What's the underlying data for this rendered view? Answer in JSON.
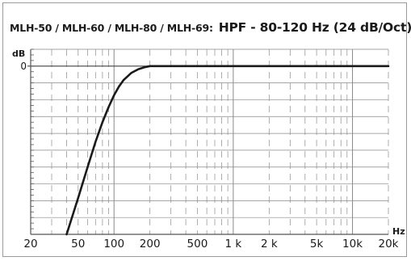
{
  "chart_data": {
    "type": "line",
    "title_models": "MLH-50 / MLH-60 / MLH-80 / MLH-69:",
    "title_spec": "HPF - 80-120 Hz (24 dB/Oct)",
    "xlabel": "Hz",
    "ylabel": "dB",
    "x_scale": "log",
    "xlim": [
      20,
      20000
    ],
    "ylim": [
      -60,
      6
    ],
    "grid": true,
    "x_ticks": [
      {
        "value": 20,
        "label": "20"
      },
      {
        "value": 50,
        "label": "50"
      },
      {
        "value": 100,
        "label": "100"
      },
      {
        "value": 200,
        "label": "200"
      },
      {
        "value": 500,
        "label": "500"
      },
      {
        "value": 1000,
        "label": "1 k"
      },
      {
        "value": 2000,
        "label": "2 k"
      },
      {
        "value": 5000,
        "label": "5k"
      },
      {
        "value": 10000,
        "label": "10k"
      },
      {
        "value": 20000,
        "label": "20k"
      }
    ],
    "y_ticks": [
      {
        "value": 0,
        "label": "0"
      }
    ],
    "series": [
      {
        "x": [
          40,
          50,
          60,
          70,
          80,
          90,
          100,
          110,
          120,
          140,
          160,
          180,
          200,
          300,
          500,
          1000,
          5000,
          20000
        ],
        "y": [
          -60,
          -47,
          -36,
          -27,
          -20,
          -14.6,
          -10.4,
          -7.3,
          -5.0,
          -2.4,
          -1.1,
          -0.4,
          0,
          0,
          0,
          0,
          0,
          0
        ]
      }
    ],
    "colors": {
      "line": "#1a1a1a",
      "axis": "#555555",
      "grid": "#888888",
      "grid_dash": "#9a9a9a"
    }
  }
}
